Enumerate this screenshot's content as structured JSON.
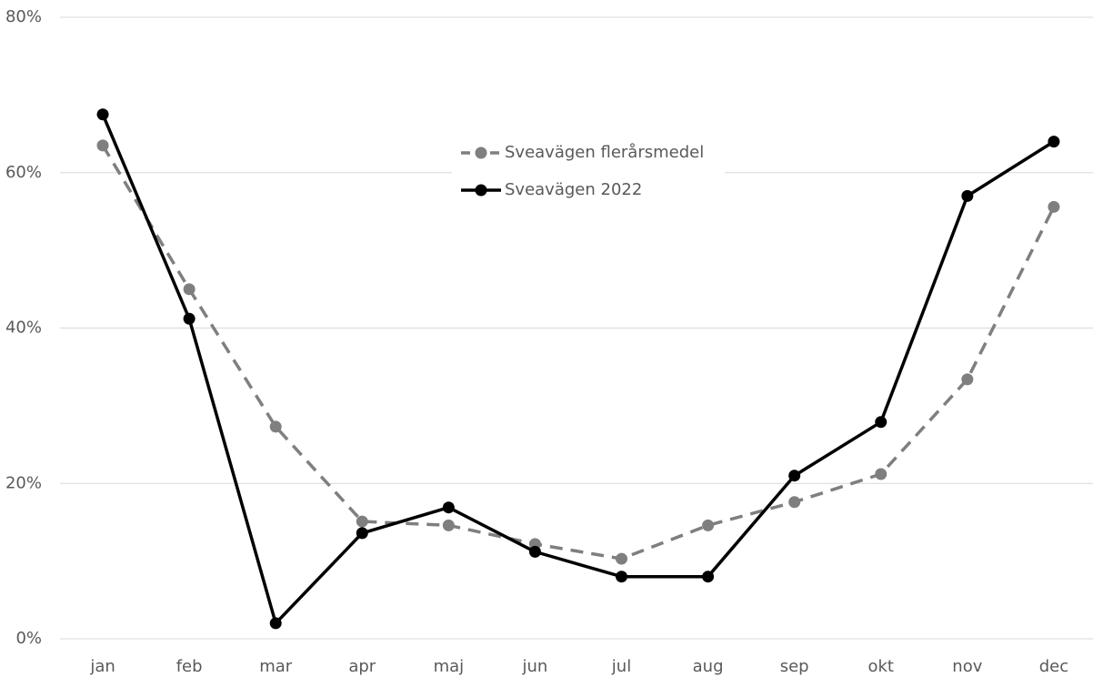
{
  "chart_data": {
    "type": "line",
    "categories": [
      "jan",
      "feb",
      "mar",
      "apr",
      "maj",
      "jun",
      "jul",
      "aug",
      "sep",
      "okt",
      "nov",
      "dec"
    ],
    "series": [
      {
        "name": "Sveavägen flerårsmedel",
        "color": "#7f7f7f",
        "dash": true,
        "values": [
          63.5,
          45.0,
          27.3,
          15.1,
          14.6,
          12.2,
          10.3,
          14.6,
          17.6,
          21.2,
          33.4,
          55.6
        ]
      },
      {
        "name": "Sveavägen 2022",
        "color": "#000000",
        "dash": false,
        "values": [
          67.5,
          41.2,
          2.0,
          13.6,
          16.9,
          11.2,
          8.0,
          8.0,
          21.0,
          27.9,
          57.0,
          64.0
        ]
      }
    ],
    "ylim": [
      0,
      80
    ],
    "yticks": [
      {
        "value": 0,
        "label": "0%"
      },
      {
        "value": 20,
        "label": "20%"
      },
      {
        "value": 40,
        "label": "40%"
      },
      {
        "value": 60,
        "label": "60%"
      },
      {
        "value": 80,
        "label": "80%"
      }
    ],
    "grid": true,
    "legend": "upper center"
  }
}
